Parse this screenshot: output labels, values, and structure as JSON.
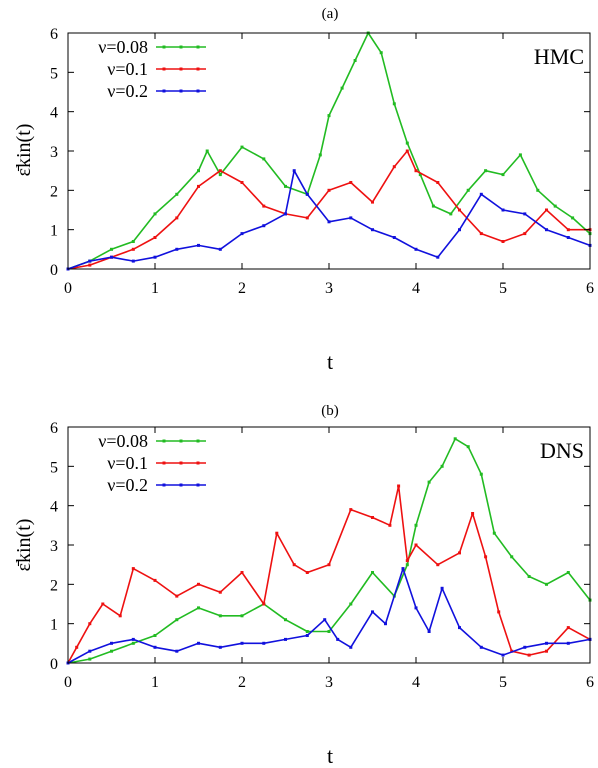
{
  "chart_data": [
    {
      "type": "line",
      "subtitle": "(a)",
      "annotation": "HMC",
      "xlabel": "t",
      "ylabel": "ε̄kin(t)",
      "xlim": [
        0,
        6
      ],
      "ylim": [
        0,
        6
      ],
      "xticks": [
        "0",
        "1",
        "2",
        "3",
        "4",
        "5",
        "6"
      ],
      "yticks": [
        "0",
        "1",
        "2",
        "3",
        "4",
        "5",
        "6"
      ],
      "grid": false,
      "legend_position": "top-left",
      "series": [
        {
          "name": "ν=0.08",
          "color": "#22bb22",
          "x": [
            0,
            0.25,
            0.5,
            0.75,
            1.0,
            1.25,
            1.5,
            1.6,
            1.75,
            2.0,
            2.25,
            2.5,
            2.75,
            2.9,
            3.0,
            3.15,
            3.3,
            3.45,
            3.6,
            3.75,
            3.9,
            4.05,
            4.2,
            4.4,
            4.6,
            4.8,
            5.0,
            5.2,
            5.4,
            5.6,
            5.8,
            6.0
          ],
          "y": [
            0,
            0.2,
            0.5,
            0.7,
            1.4,
            1.9,
            2.5,
            3.0,
            2.4,
            3.1,
            2.8,
            2.1,
            1.9,
            2.9,
            3.9,
            4.6,
            5.3,
            6.0,
            5.5,
            4.2,
            3.2,
            2.4,
            1.6,
            1.4,
            2.0,
            2.5,
            2.4,
            2.9,
            2.0,
            1.6,
            1.3,
            0.9
          ]
        },
        {
          "name": "ν=0.1",
          "color": "#ee1111",
          "x": [
            0,
            0.25,
            0.5,
            0.75,
            1.0,
            1.25,
            1.5,
            1.75,
            2.0,
            2.25,
            2.5,
            2.75,
            3.0,
            3.25,
            3.5,
            3.75,
            3.9,
            4.0,
            4.25,
            4.5,
            4.75,
            5.0,
            5.25,
            5.5,
            5.75,
            6.0
          ],
          "y": [
            0,
            0.1,
            0.3,
            0.5,
            0.8,
            1.3,
            2.1,
            2.5,
            2.2,
            1.6,
            1.4,
            1.3,
            2.0,
            2.2,
            1.7,
            2.6,
            3.0,
            2.5,
            2.2,
            1.5,
            0.9,
            0.7,
            0.9,
            1.5,
            1.0,
            1.0
          ]
        },
        {
          "name": "ν=0.2",
          "color": "#1111dd",
          "x": [
            0,
            0.25,
            0.5,
            0.75,
            1.0,
            1.25,
            1.5,
            1.75,
            2.0,
            2.25,
            2.5,
            2.6,
            2.75,
            3.0,
            3.25,
            3.5,
            3.75,
            4.0,
            4.25,
            4.5,
            4.75,
            5.0,
            5.25,
            5.5,
            5.75,
            6.0
          ],
          "y": [
            0,
            0.2,
            0.3,
            0.2,
            0.3,
            0.5,
            0.6,
            0.5,
            0.9,
            1.1,
            1.4,
            2.5,
            1.9,
            1.2,
            1.3,
            1.0,
            0.8,
            0.5,
            0.3,
            1.0,
            1.9,
            1.5,
            1.4,
            1.0,
            0.8,
            0.6
          ]
        }
      ]
    },
    {
      "type": "line",
      "subtitle": "(b)",
      "annotation": "DNS",
      "xlabel": "t",
      "ylabel": "ε̄kin(t)",
      "xlim": [
        0,
        6
      ],
      "ylim": [
        0,
        6
      ],
      "xticks": [
        "0",
        "1",
        "2",
        "3",
        "4",
        "5",
        "6"
      ],
      "yticks": [
        "0",
        "1",
        "2",
        "3",
        "4",
        "5",
        "6"
      ],
      "grid": false,
      "legend_position": "top-left",
      "series": [
        {
          "name": "ν=0.08",
          "color": "#22bb22",
          "x": [
            0,
            0.25,
            0.5,
            0.75,
            1.0,
            1.25,
            1.5,
            1.75,
            2.0,
            2.25,
            2.5,
            2.75,
            3.0,
            3.25,
            3.5,
            3.75,
            3.9,
            4.0,
            4.15,
            4.3,
            4.45,
            4.6,
            4.75,
            4.9,
            5.1,
            5.3,
            5.5,
            5.75,
            6.0
          ],
          "y": [
            0,
            0.1,
            0.3,
            0.5,
            0.7,
            1.1,
            1.4,
            1.2,
            1.2,
            1.5,
            1.1,
            0.8,
            0.8,
            1.5,
            2.3,
            1.7,
            2.5,
            3.5,
            4.6,
            5.0,
            5.7,
            5.5,
            4.8,
            3.3,
            2.7,
            2.2,
            2.0,
            2.3,
            1.6
          ]
        },
        {
          "name": "ν=0.1",
          "color": "#ee1111",
          "x": [
            0,
            0.1,
            0.25,
            0.4,
            0.6,
            0.75,
            1.0,
            1.25,
            1.5,
            1.75,
            2.0,
            2.25,
            2.4,
            2.6,
            2.75,
            3.0,
            3.25,
            3.5,
            3.7,
            3.8,
            3.9,
            4.0,
            4.25,
            4.5,
            4.65,
            4.8,
            4.95,
            5.1,
            5.3,
            5.5,
            5.75,
            6.0
          ],
          "y": [
            0,
            0.4,
            1.0,
            1.5,
            1.2,
            2.4,
            2.1,
            1.7,
            2.0,
            1.8,
            2.3,
            1.5,
            3.3,
            2.5,
            2.3,
            2.5,
            3.9,
            3.7,
            3.5,
            4.5,
            2.6,
            3.0,
            2.5,
            2.8,
            3.8,
            2.7,
            1.3,
            0.3,
            0.2,
            0.3,
            0.9,
            0.6
          ]
        },
        {
          "name": "ν=0.2",
          "color": "#1111dd",
          "x": [
            0,
            0.25,
            0.5,
            0.75,
            1.0,
            1.25,
            1.5,
            1.75,
            2.0,
            2.25,
            2.5,
            2.75,
            2.95,
            3.1,
            3.25,
            3.5,
            3.65,
            3.85,
            4.0,
            4.15,
            4.3,
            4.5,
            4.75,
            5.0,
            5.25,
            5.5,
            5.75,
            6.0
          ],
          "y": [
            0,
            0.3,
            0.5,
            0.6,
            0.4,
            0.3,
            0.5,
            0.4,
            0.5,
            0.5,
            0.6,
            0.7,
            1.1,
            0.6,
            0.4,
            1.3,
            1.0,
            2.4,
            1.4,
            0.8,
            1.9,
            0.9,
            0.4,
            0.2,
            0.4,
            0.5,
            0.5,
            0.6
          ]
        }
      ]
    }
  ]
}
